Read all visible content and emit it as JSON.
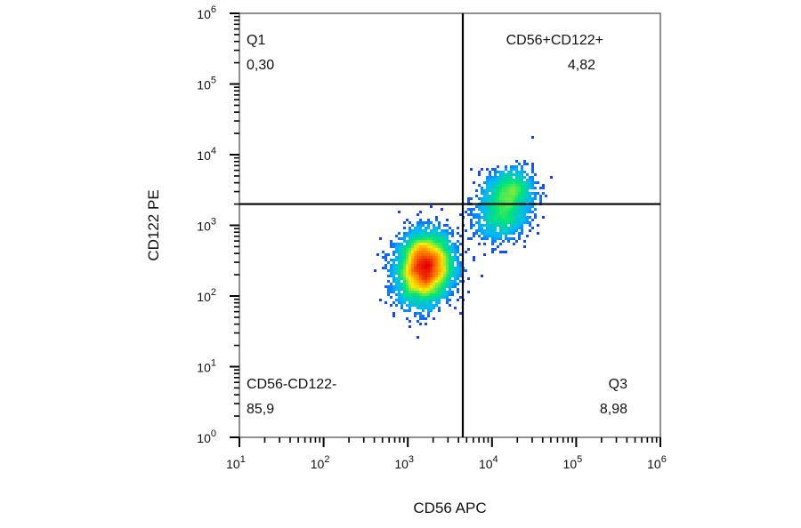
{
  "chart_data": {
    "type": "scatter",
    "title": "",
    "xlabel": "CD56 APC",
    "ylabel": "CD122 PE",
    "x_scale": "log",
    "y_scale": "log",
    "xlim": [
      10,
      1000000
    ],
    "ylim": [
      1,
      1000000
    ],
    "x_ticks": [
      {
        "base": "10",
        "exp": "1",
        "value": 10
      },
      {
        "base": "10",
        "exp": "2",
        "value": 100
      },
      {
        "base": "10",
        "exp": "3",
        "value": 1000
      },
      {
        "base": "10",
        "exp": "4",
        "value": 10000
      },
      {
        "base": "10",
        "exp": "5",
        "value": 100000
      },
      {
        "base": "10",
        "exp": "6",
        "value": 1000000
      }
    ],
    "y_ticks": [
      {
        "base": "10",
        "exp": "0",
        "value": 1
      },
      {
        "base": "10",
        "exp": "1",
        "value": 10
      },
      {
        "base": "10",
        "exp": "2",
        "value": 100
      },
      {
        "base": "10",
        "exp": "3",
        "value": 1000
      },
      {
        "base": "10",
        "exp": "4",
        "value": 10000
      },
      {
        "base": "10",
        "exp": "5",
        "value": 100000
      },
      {
        "base": "10",
        "exp": "6",
        "value": 1000000
      }
    ],
    "gates": {
      "x": 4500,
      "y": 2000
    },
    "quadrants": [
      {
        "name": "Q1",
        "value": "0,30",
        "position": "top-left"
      },
      {
        "name": "CD56+CD122+",
        "value": "4,82",
        "position": "top-right"
      },
      {
        "name": "CD56-CD122-",
        "value": "85,9",
        "position": "bottom-left"
      },
      {
        "name": "Q3",
        "value": "8,98",
        "position": "bottom-right"
      }
    ],
    "populations": [
      {
        "center_x": 1600,
        "center_y": 250,
        "spread_x": 0.16,
        "spread_y": 0.24,
        "corr": 0.1,
        "count": 5200
      },
      {
        "center_x": 14000,
        "center_y": 1700,
        "spread_x": 0.17,
        "spread_y": 0.22,
        "corr": 0.25,
        "count": 1300
      },
      {
        "center_x": 16000,
        "center_y": 3500,
        "spread_x": 0.14,
        "spread_y": 0.14,
        "corr": 0.1,
        "count": 500
      }
    ],
    "colormap": [
      "#1a1aff",
      "#00b4ff",
      "#00e676",
      "#ffee00",
      "#ff7a00",
      "#e60000"
    ],
    "grid": false,
    "legend": "none"
  }
}
